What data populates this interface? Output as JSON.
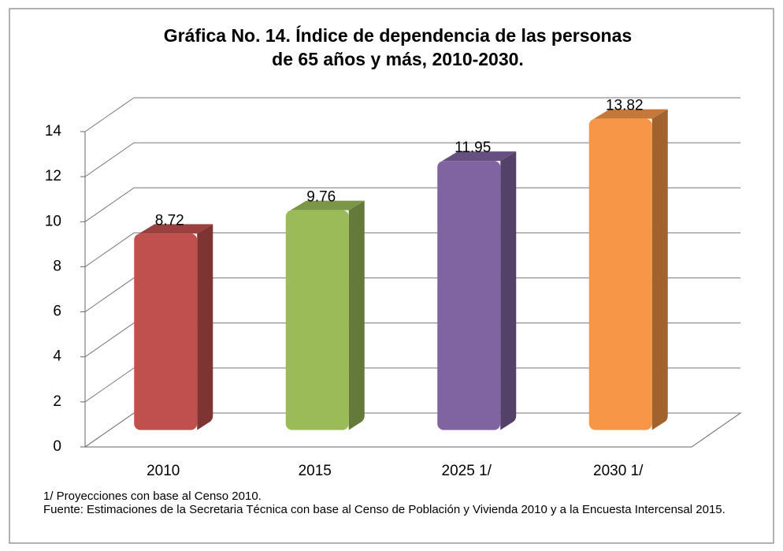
{
  "chart_data": {
    "type": "bar3d",
    "title": [
      "Gráfica  No. 14.  Índice de dependencia de las personas",
      "de  65 años y más, 2010-2030."
    ],
    "categories": [
      "2010",
      "2015",
      "2025 1/",
      "2030 1/"
    ],
    "values": [
      8.72,
      9.76,
      11.95,
      13.82
    ],
    "colors": [
      "#c0504d",
      "#9bbb59",
      "#8064a2",
      "#f79646"
    ],
    "ylim": [
      0,
      14
    ],
    "yticks": [
      0,
      2,
      4,
      6,
      8,
      10,
      12,
      14
    ],
    "grid": true,
    "notes": [
      "1/ Proyecciones con base al Censo 2010.",
      "Fuente: Estimaciones de la Secretaria Técnica con base al Censo de Población y Vivienda  2010 y a la Encuesta Intercensal 2015."
    ]
  }
}
